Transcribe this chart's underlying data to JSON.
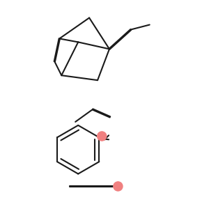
{
  "background_color": "#ffffff",
  "line_color": "#1a1a1a",
  "dot_color": "#f08080",
  "line_width": 1.5,
  "figsize": [
    3.0,
    3.0
  ],
  "dpi": 100
}
